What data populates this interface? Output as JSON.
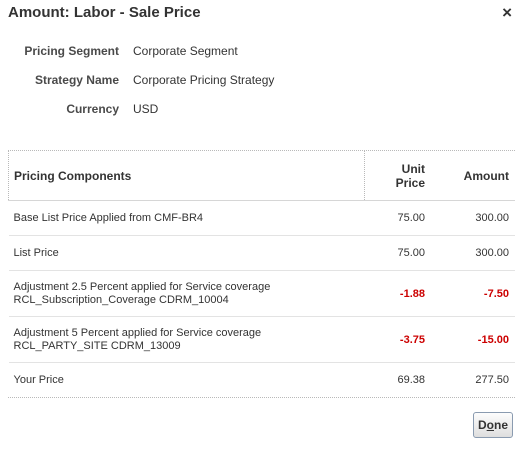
{
  "dialog": {
    "title": "Amount: Labor - Sale Price",
    "close_icon": "close-icon",
    "close_glyph": "×"
  },
  "meta": {
    "pricing_segment": {
      "label": "Pricing Segment",
      "value": "Corporate Segment"
    },
    "strategy_name": {
      "label": "Strategy Name",
      "value": "Corporate Pricing Strategy"
    },
    "currency": {
      "label": "Currency",
      "value": "USD"
    }
  },
  "table": {
    "headers": {
      "components": "Pricing Components",
      "unit_price_line1": "Unit",
      "unit_price_line2": "Price",
      "amount": "Amount"
    },
    "rows": [
      {
        "component_line1": "Base List Price Applied from CMF-BR4",
        "component_line2": "",
        "unit_price": "75.00",
        "amount": "300.00"
      },
      {
        "component_line1": "List Price",
        "component_line2": "",
        "unit_price": "75.00",
        "amount": "300.00"
      },
      {
        "component_line1": "Adjustment 2.5 Percent applied for Service coverage",
        "component_line2": "RCL_Subscription_Coverage CDRM_10004",
        "unit_price": "-1.88",
        "amount": "-7.50"
      },
      {
        "component_line1": "Adjustment 5 Percent applied for Service coverage",
        "component_line2": "RCL_PARTY_SITE CDRM_13009",
        "unit_price": "-3.75",
        "amount": "-15.00"
      },
      {
        "component_line1": "Your Price",
        "component_line2": "",
        "unit_price": "69.38",
        "amount": "277.50"
      }
    ]
  },
  "footer": {
    "done_label_prefix": "D",
    "done_label_accesskey": "o",
    "done_label_suffix": "ne"
  },
  "colors": {
    "negative": "#cc0000",
    "text": "#333333"
  }
}
